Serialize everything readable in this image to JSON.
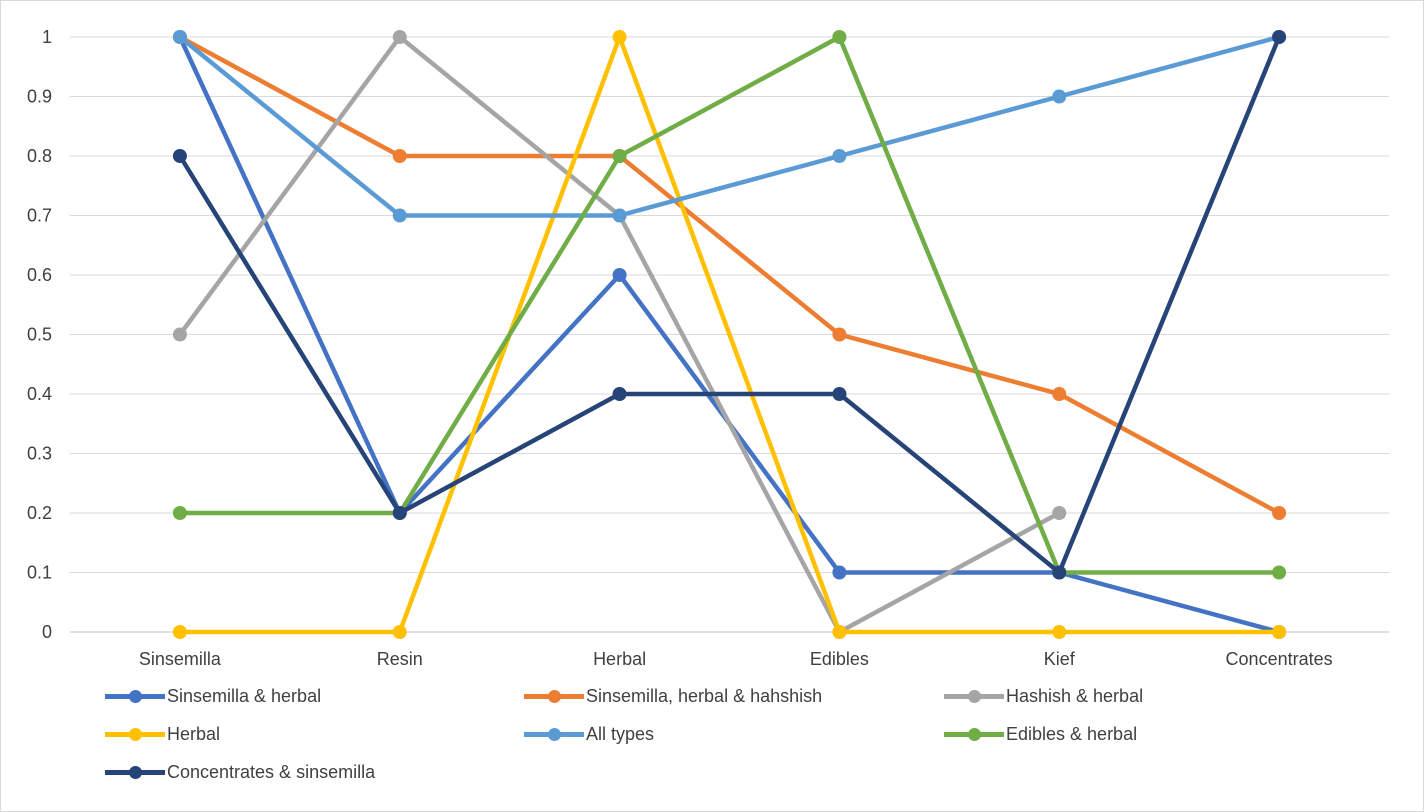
{
  "chart_data": {
    "type": "line",
    "title": "",
    "xlabel": "",
    "ylabel": "",
    "categories": [
      "Sinsemilla",
      "Resin",
      "Herbal",
      "Edibles",
      "Kief",
      "Concentrates"
    ],
    "ylim": [
      0,
      1
    ],
    "yticks": [
      "0",
      "0.1",
      "0.2",
      "0.3",
      "0.4",
      "0.5",
      "0.6",
      "0.7",
      "0.8",
      "0.9",
      "1"
    ],
    "grid": true,
    "legend_position": "bottom",
    "series": [
      {
        "name": "Sinsemilla & herbal",
        "color": "#4472C4",
        "values": [
          1,
          0.2,
          0.6,
          0.1,
          0.1,
          0
        ]
      },
      {
        "name": "Sinsemilla, herbal & hahshish",
        "color": "#ED7D31",
        "values": [
          1,
          0.8,
          0.8,
          0.5,
          0.4,
          0.2
        ]
      },
      {
        "name": "Hashish & herbal",
        "color": "#A5A5A5",
        "values": [
          0.5,
          1,
          0.7,
          0,
          0.2,
          null
        ]
      },
      {
        "name": "Herbal",
        "color": "#FFC000",
        "values": [
          0,
          0,
          1,
          0,
          0,
          0
        ]
      },
      {
        "name": "All types",
        "color": "#5B9BD5",
        "values": [
          1,
          0.7,
          0.7,
          0.8,
          0.9,
          1
        ]
      },
      {
        "name": "Edibles & herbal",
        "color": "#70AD47",
        "values": [
          0.2,
          0.2,
          0.8,
          1,
          0.1,
          0.1
        ]
      },
      {
        "name": "Concentrates & sinsemilla",
        "color": "#264478",
        "values": [
          0.8,
          0.2,
          0.4,
          0.4,
          0.1,
          1
        ]
      }
    ]
  }
}
